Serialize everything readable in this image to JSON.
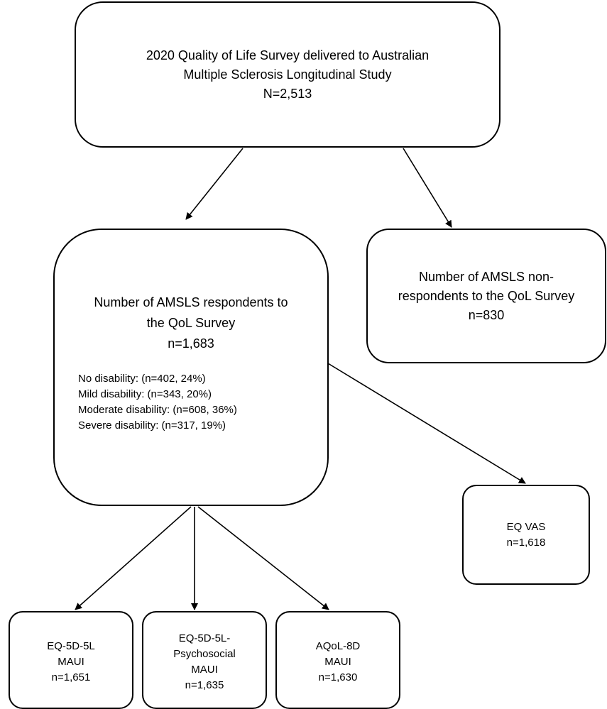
{
  "diagram": {
    "top_box": {
      "line1": "2020 Quality of Life Survey delivered to Australian",
      "line2": "Multiple Sclerosis Longitudinal Study",
      "count": "N=2,513"
    },
    "respondents_box": {
      "line1": "Number of AMSLS respondents to",
      "line2": "the QoL Survey",
      "count": "n=1,683",
      "breakdown": [
        "No disability: (n=402, 24%)",
        "Mild disability: (n=343, 20%)",
        "Moderate disability: (n=608, 36%)",
        "Severe disability: (n=317, 19%)"
      ]
    },
    "nonrespondents_box": {
      "line1": "Number of AMSLS non-",
      "line2": "respondents to the QoL Survey",
      "count": "n=830"
    },
    "eq_vas_box": {
      "label": "EQ VAS",
      "count": "n=1,618"
    },
    "eq5d_box": {
      "line1": "EQ-5D-5L",
      "line2": "MAUI",
      "count": "n=1,651"
    },
    "psychosocial_box": {
      "line1": "EQ-5D-5L-",
      "line2": "Psychosocial",
      "line3": "MAUI",
      "count": "n=1,635"
    },
    "aqol_box": {
      "line1": "AQoL-8D",
      "line2": "MAUI",
      "count": "n=1,630"
    }
  }
}
